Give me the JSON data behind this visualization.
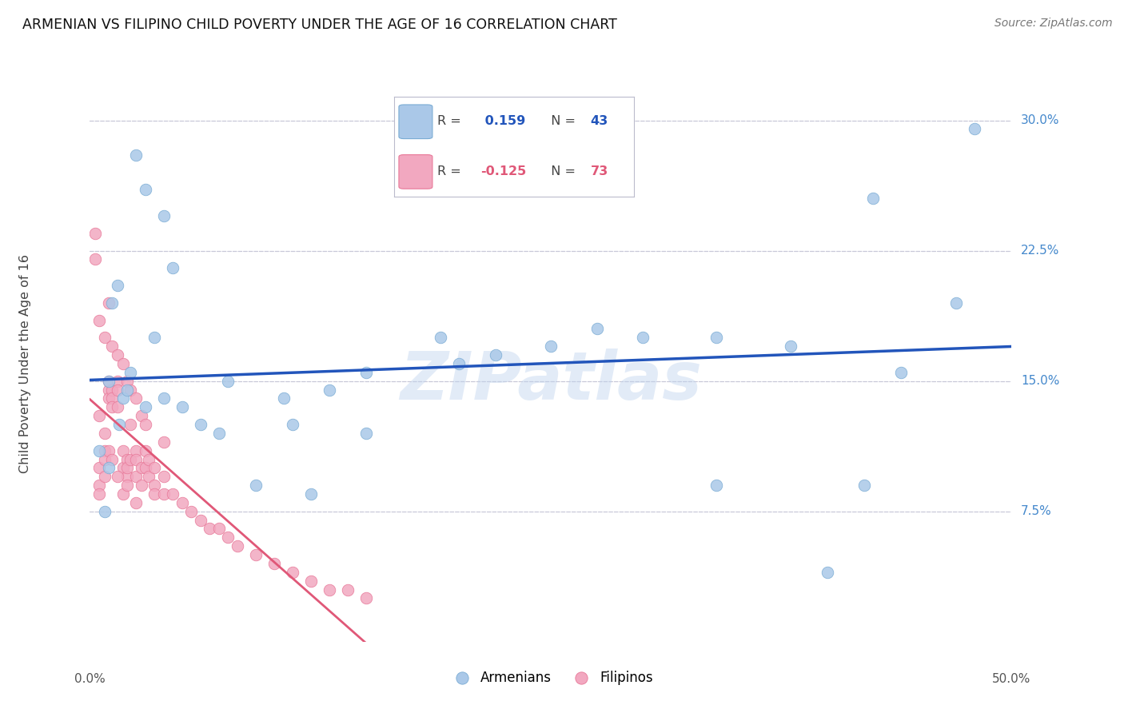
{
  "title": "ARMENIAN VS FILIPINO CHILD POVERTY UNDER THE AGE OF 16 CORRELATION CHART",
  "source": "Source: ZipAtlas.com",
  "ylabel": "Child Poverty Under the Age of 16",
  "ytick_labels": [
    "7.5%",
    "15.0%",
    "22.5%",
    "30.0%"
  ],
  "ytick_values": [
    7.5,
    15.0,
    22.5,
    30.0
  ],
  "xtick_labels": [
    "0.0%",
    "50.0%"
  ],
  "xtick_values": [
    0.0,
    50.0
  ],
  "xlim": [
    0.0,
    50.0
  ],
  "ylim": [
    0.0,
    32.0
  ],
  "watermark": "ZIPatlas",
  "legend_armenian_R": "0.159",
  "legend_armenian_N": "43",
  "legend_filipino_R": "-0.125",
  "legend_filipino_N": "73",
  "armenian_color": "#aac8e8",
  "filipino_color": "#f2a8c0",
  "armenian_edge_color": "#7aacd4",
  "filipino_edge_color": "#e87898",
  "armenian_line_color": "#2255bb",
  "filipino_line_color": "#e05878",
  "background_color": "#ffffff",
  "grid_color": "#c8c8d8",
  "armenian_x": [
    1.5,
    2.5,
    3.0,
    4.0,
    4.5,
    1.0,
    1.8,
    2.2,
    1.2,
    1.6,
    3.5,
    5.0,
    7.5,
    7.0,
    10.5,
    11.0,
    13.0,
    15.0,
    19.0,
    22.0,
    25.0,
    27.5,
    30.0,
    34.0,
    38.0,
    42.0,
    47.0,
    42.5,
    44.0,
    1.0,
    0.8,
    2.0,
    0.5,
    3.0,
    9.0,
    12.0,
    34.0,
    40.0,
    48.0,
    20.0,
    15.0,
    6.0,
    4.0
  ],
  "armenian_y": [
    20.5,
    28.0,
    26.0,
    24.5,
    21.5,
    15.0,
    14.0,
    15.5,
    19.5,
    12.5,
    17.5,
    13.5,
    15.0,
    12.0,
    14.0,
    12.5,
    14.5,
    12.0,
    17.5,
    16.5,
    17.0,
    18.0,
    17.5,
    17.5,
    17.0,
    9.0,
    19.5,
    25.5,
    15.5,
    10.0,
    7.5,
    14.5,
    11.0,
    13.5,
    9.0,
    8.5,
    9.0,
    4.0,
    29.5,
    16.0,
    15.5,
    12.5,
    14.0
  ],
  "filipino_x": [
    0.5,
    0.5,
    0.5,
    0.8,
    0.8,
    0.8,
    1.0,
    1.0,
    1.0,
    1.2,
    1.2,
    1.2,
    1.5,
    1.5,
    1.5,
    1.8,
    1.8,
    2.0,
    2.0,
    2.0,
    2.2,
    2.2,
    2.5,
    2.5,
    2.5,
    2.8,
    2.8,
    3.0,
    3.0,
    3.2,
    3.2,
    3.5,
    3.5,
    4.0,
    4.0,
    4.5,
    5.0,
    5.5,
    6.0,
    6.5,
    7.0,
    7.5,
    8.0,
    9.0,
    10.0,
    11.0,
    12.0,
    13.0,
    14.0,
    15.0,
    0.3,
    0.3,
    0.5,
    0.8,
    1.0,
    1.2,
    1.5,
    1.8,
    2.0,
    2.2,
    2.5,
    2.8,
    3.0,
    3.5,
    4.0,
    0.5,
    0.8,
    1.0,
    1.2,
    1.5,
    1.8,
    2.0,
    2.5
  ],
  "filipino_y": [
    10.0,
    9.0,
    8.5,
    11.0,
    9.5,
    10.5,
    14.5,
    14.0,
    15.0,
    14.5,
    14.0,
    13.5,
    15.0,
    14.5,
    13.5,
    11.0,
    10.0,
    10.5,
    9.5,
    10.0,
    10.5,
    12.5,
    11.0,
    10.5,
    9.5,
    10.0,
    9.0,
    11.0,
    10.0,
    10.5,
    9.5,
    9.0,
    8.5,
    11.5,
    8.5,
    8.5,
    8.0,
    7.5,
    7.0,
    6.5,
    6.5,
    6.0,
    5.5,
    5.0,
    4.5,
    4.0,
    3.5,
    3.0,
    3.0,
    2.5,
    22.0,
    23.5,
    18.5,
    17.5,
    19.5,
    17.0,
    16.5,
    16.0,
    15.0,
    14.5,
    14.0,
    13.0,
    12.5,
    10.0,
    9.5,
    13.0,
    12.0,
    11.0,
    10.5,
    9.5,
    8.5,
    9.0,
    8.0
  ],
  "fil_line_solid_end": 15.0,
  "fil_line_dash_end": 50.0
}
